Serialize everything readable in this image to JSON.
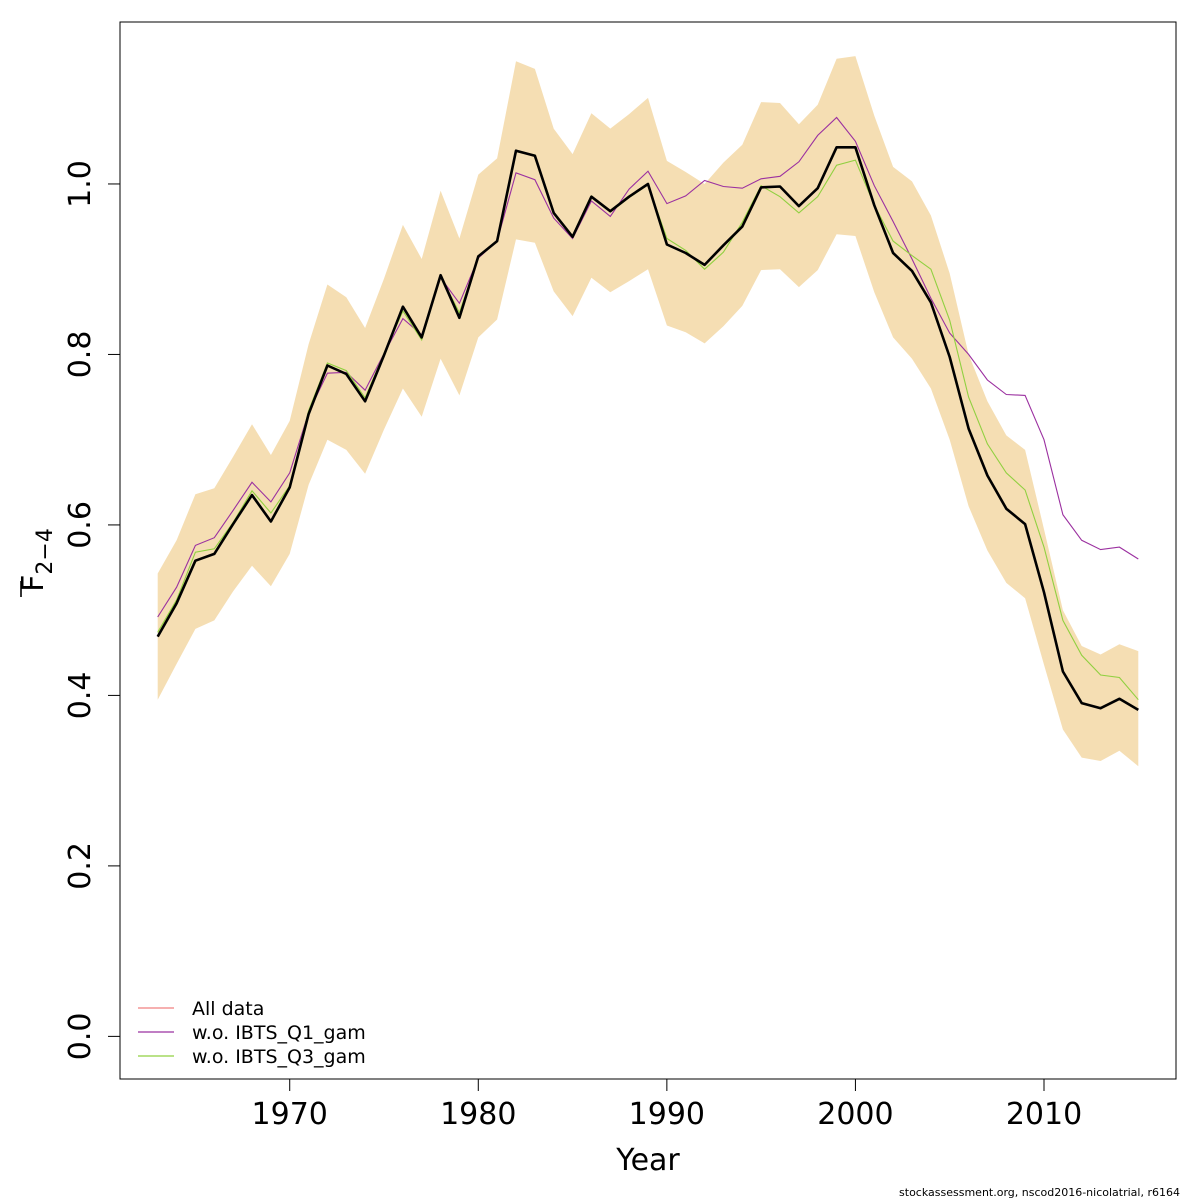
{
  "chart_data": {
    "type": "line",
    "xlabel": "Year",
    "ylabel_main": "F",
    "ylabel_sub": "2−4",
    "xlim": [
      1961,
      2017
    ],
    "ylim": [
      -0.05,
      1.19
    ],
    "xticks": [
      1970,
      1980,
      1990,
      2000,
      2010
    ],
    "xtick_labels": [
      "1970",
      "1980",
      "1990",
      "2000",
      "2010"
    ],
    "yticks": [
      0.0,
      0.2,
      0.4,
      0.6,
      0.8,
      1.0
    ],
    "ytick_labels": [
      "0.0",
      "0.2",
      "0.4",
      "0.6",
      "0.8",
      "1.0"
    ],
    "x": [
      1963,
      1964,
      1965,
      1966,
      1967,
      1968,
      1969,
      1970,
      1971,
      1972,
      1973,
      1974,
      1975,
      1976,
      1977,
      1978,
      1979,
      1980,
      1981,
      1982,
      1983,
      1984,
      1985,
      1986,
      1987,
      1988,
      1989,
      1990,
      1991,
      1992,
      1993,
      1994,
      1995,
      1996,
      1997,
      1998,
      1999,
      2000,
      2001,
      2002,
      2003,
      2004,
      2005,
      2006,
      2007,
      2008,
      2009,
      2010,
      2011,
      2012,
      2013,
      2014,
      2015
    ],
    "confidence_band": {
      "color": "#f5deb3",
      "lower": [
        0.395,
        0.437,
        0.478,
        0.488,
        0.522,
        0.552,
        0.528,
        0.566,
        0.647,
        0.7,
        0.688,
        0.66,
        0.712,
        0.76,
        0.727,
        0.795,
        0.752,
        0.82,
        0.841,
        0.935,
        0.931,
        0.874,
        0.845,
        0.89,
        0.873,
        0.886,
        0.9,
        0.834,
        0.826,
        0.813,
        0.833,
        0.857,
        0.899,
        0.9,
        0.879,
        0.899,
        0.941,
        0.939,
        0.873,
        0.82,
        0.795,
        0.76,
        0.7,
        0.622,
        0.57,
        0.532,
        0.514,
        0.436,
        0.36,
        0.327,
        0.323,
        0.335,
        0.317
      ],
      "upper": [
        0.543,
        0.582,
        0.636,
        0.643,
        0.68,
        0.718,
        0.682,
        0.722,
        0.812,
        0.882,
        0.867,
        0.831,
        0.889,
        0.952,
        0.912,
        0.992,
        0.936,
        1.011,
        1.03,
        1.144,
        1.135,
        1.065,
        1.035,
        1.083,
        1.065,
        1.082,
        1.101,
        1.027,
        1.014,
        1.0,
        1.025,
        1.046,
        1.096,
        1.095,
        1.07,
        1.093,
        1.147,
        1.15,
        1.08,
        1.02,
        1.003,
        0.963,
        0.895,
        0.8,
        0.745,
        0.705,
        0.688,
        0.595,
        0.5,
        0.458,
        0.448,
        0.46,
        0.452
      ]
    },
    "main_line": {
      "color": "#000000",
      "values": [
        0.469,
        0.508,
        0.558,
        0.566,
        0.601,
        0.635,
        0.604,
        0.644,
        0.73,
        0.787,
        0.777,
        0.745,
        0.799,
        0.856,
        0.82,
        0.893,
        0.843,
        0.915,
        0.933,
        1.039,
        1.033,
        0.966,
        0.938,
        0.985,
        0.968,
        0.985,
        1.0,
        0.929,
        0.919,
        0.905,
        0.928,
        0.95,
        0.996,
        0.997,
        0.974,
        0.995,
        1.043,
        1.043,
        0.975,
        0.919,
        0.898,
        0.861,
        0.797,
        0.713,
        0.658,
        0.619,
        0.601,
        0.521,
        0.428,
        0.391,
        0.385,
        0.396,
        0.383
      ]
    },
    "series": [
      {
        "name": "All data",
        "color": "#f08080",
        "values": [
          0.469,
          0.508,
          0.558,
          0.566,
          0.601,
          0.635,
          0.604,
          0.644,
          0.73,
          0.787,
          0.777,
          0.745,
          0.799,
          0.856,
          0.82,
          0.893,
          0.843,
          0.915,
          0.933,
          1.039,
          1.033,
          0.966,
          0.938,
          0.985,
          0.968,
          0.985,
          1.0,
          0.929,
          0.919,
          0.905,
          0.928,
          0.95,
          0.996,
          0.997,
          0.974,
          0.995,
          1.043,
          1.043,
          0.975,
          0.919,
          0.898,
          0.861,
          0.797,
          0.713,
          0.658,
          0.619,
          0.601,
          0.521,
          0.428,
          0.391,
          0.385,
          0.396,
          0.383
        ]
      },
      {
        "name": "w.o. IBTS_Q1_gam",
        "color": "#9b30a0",
        "values": [
          0.492,
          0.527,
          0.576,
          0.585,
          0.617,
          0.65,
          0.627,
          0.661,
          0.732,
          0.778,
          0.779,
          0.758,
          0.801,
          0.842,
          0.823,
          0.89,
          0.86,
          0.913,
          0.933,
          1.013,
          1.005,
          0.96,
          0.936,
          0.98,
          0.962,
          0.994,
          1.015,
          0.977,
          0.986,
          1.004,
          0.997,
          0.995,
          1.006,
          1.009,
          1.026,
          1.057,
          1.078,
          1.05,
          0.998,
          0.956,
          0.912,
          0.866,
          0.825,
          0.8,
          0.77,
          0.753,
          0.752,
          0.7,
          0.612,
          0.582,
          0.571,
          0.574,
          0.56
        ]
      },
      {
        "name": "w.o. IBTS_Q3_gam",
        "color": "#90d040",
        "values": [
          0.474,
          0.512,
          0.568,
          0.572,
          0.603,
          0.64,
          0.614,
          0.646,
          0.734,
          0.79,
          0.781,
          0.749,
          0.801,
          0.851,
          0.817,
          0.892,
          0.849,
          0.914,
          0.934,
          1.038,
          1.034,
          0.967,
          0.939,
          0.986,
          0.967,
          0.984,
          0.999,
          0.936,
          0.922,
          0.9,
          0.92,
          0.955,
          0.998,
          0.985,
          0.966,
          0.985,
          1.022,
          1.028,
          0.975,
          0.933,
          0.916,
          0.9,
          0.84,
          0.75,
          0.695,
          0.661,
          0.641,
          0.574,
          0.488,
          0.447,
          0.424,
          0.421,
          0.395
        ]
      }
    ],
    "legend_position": "bottom-left",
    "grid": false
  },
  "footer": "stockassessment.org, nscod2016-nicolatrial, r6164"
}
